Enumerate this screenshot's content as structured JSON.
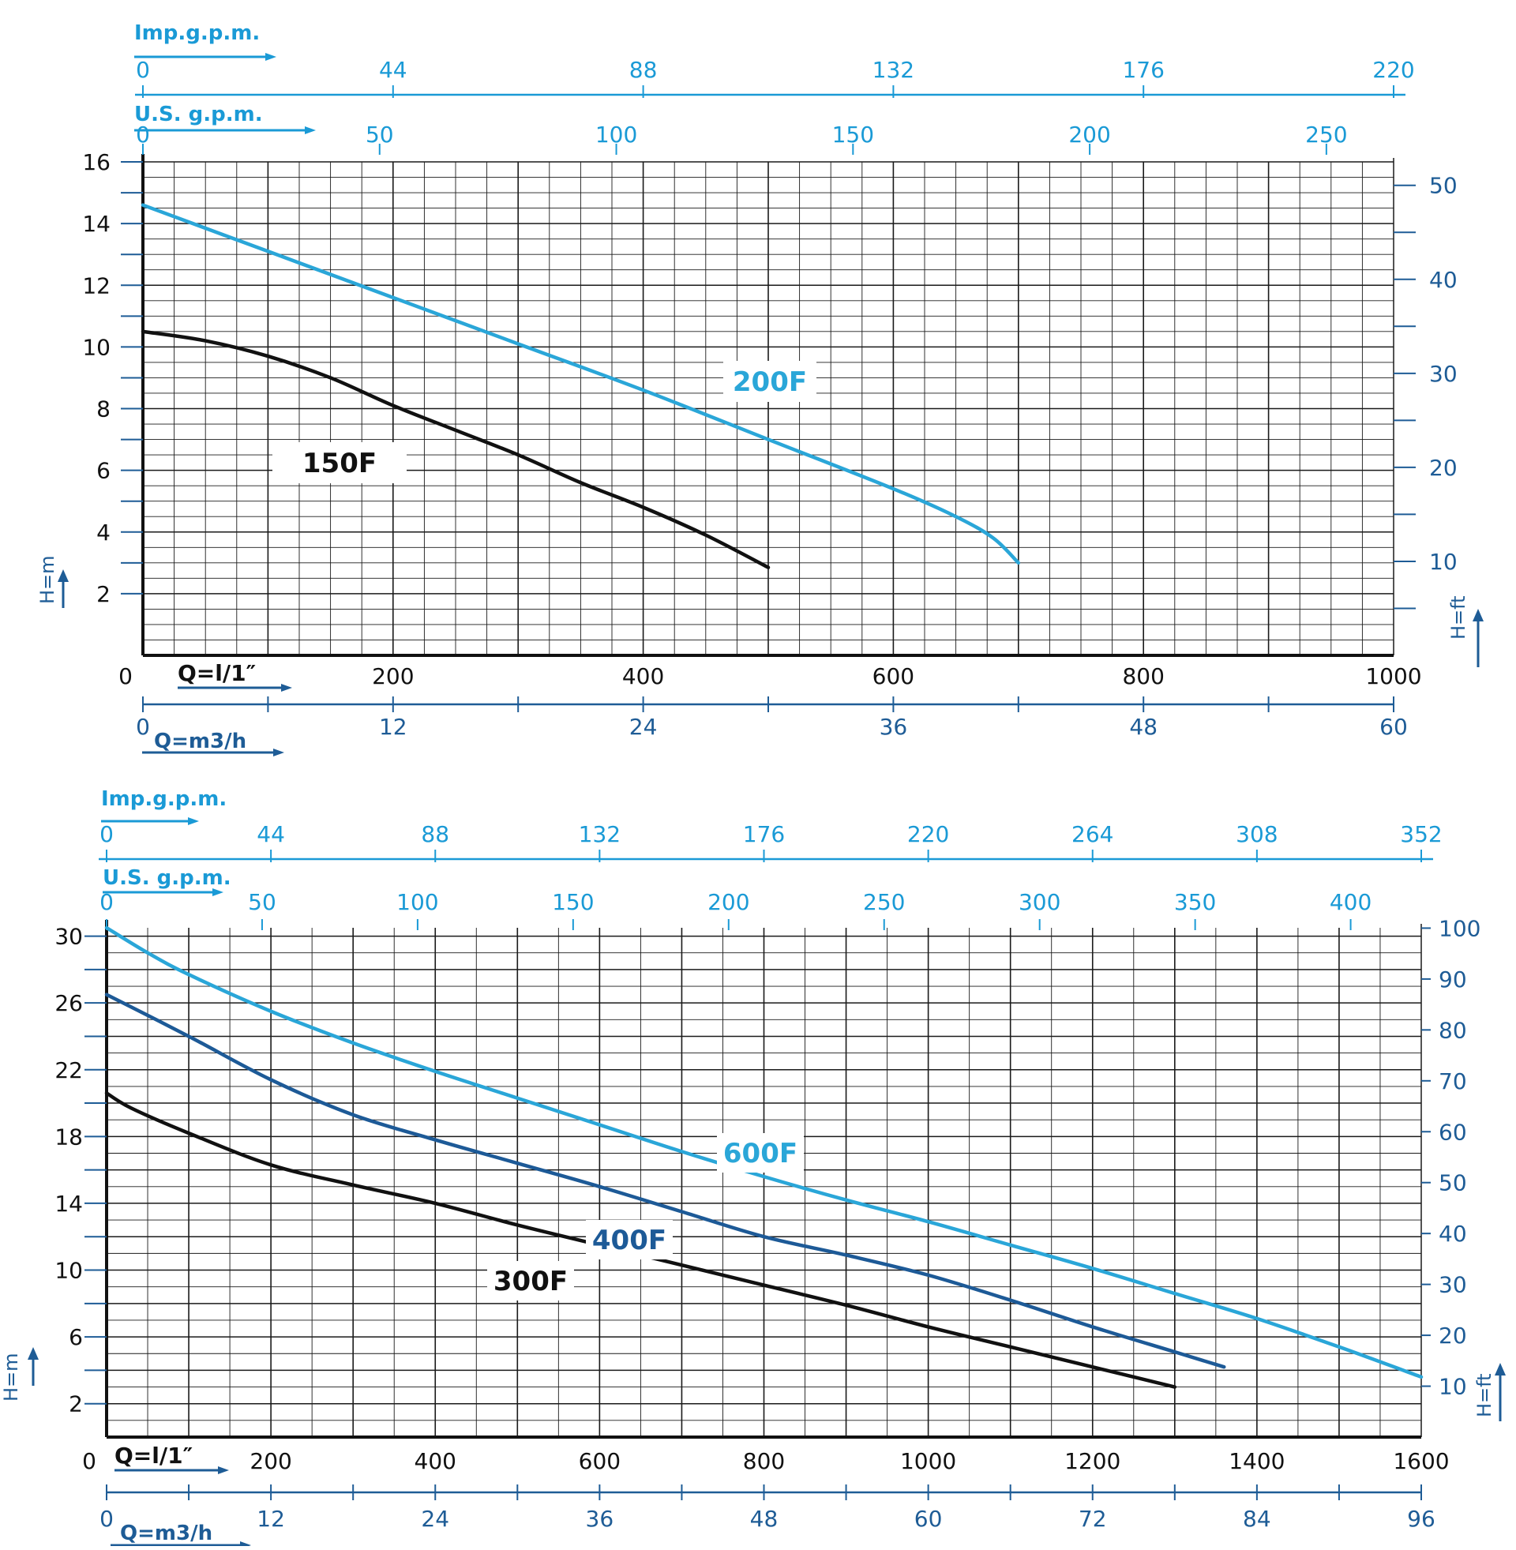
{
  "colors": {
    "axis_blue": "#1a9ad6",
    "axis_navy": "#1e5c96",
    "grid": "#1a1a1a",
    "black": "#111111",
    "light_blue": "#2aa6d8",
    "dark_blue": "#1d5a97"
  },
  "chart_data": [
    {
      "type": "line",
      "title": "",
      "xlabel": "Q=l/1″",
      "ylabel": "H=m",
      "xlim": [
        0,
        1000
      ],
      "ylim": [
        0,
        16
      ],
      "x_ticks": [
        "0",
        "200",
        "400",
        "600",
        "800",
        "1000"
      ],
      "y_ticks": [
        "2",
        "4",
        "6",
        "8",
        "10",
        "12",
        "14",
        "16"
      ],
      "grid": true,
      "top_axis_imp": {
        "label": "Imp.g.p.m.",
        "ticks": [
          "0",
          "44",
          "88",
          "132",
          "176",
          "220"
        ]
      },
      "top_axis_us": {
        "label": "U.S. g.p.m.",
        "ticks": [
          "0",
          "50",
          "100",
          "150",
          "200",
          "250"
        ]
      },
      "bottom_axis_m3h": {
        "label": "Q=m3/h",
        "ticks": [
          "0",
          "12",
          "24",
          "36",
          "48",
          "60"
        ]
      },
      "right_axis_ft": {
        "label": "H=ft",
        "ticks": [
          "10",
          "20",
          "30",
          "40",
          "50"
        ]
      },
      "series": [
        {
          "name": "150F",
          "color": "#111111",
          "x": [
            0,
            50,
            100,
            150,
            200,
            250,
            300,
            350,
            400,
            450,
            500
          ],
          "y": [
            10.5,
            10.2,
            9.7,
            9.0,
            8.1,
            7.3,
            6.5,
            5.6,
            4.8,
            3.9,
            2.85
          ]
        },
        {
          "name": "200F",
          "color": "#2aa6d8",
          "x": [
            0,
            100,
            200,
            300,
            400,
            500,
            600,
            650,
            680,
            700
          ],
          "y": [
            14.6,
            13.1,
            11.6,
            10.1,
            8.6,
            7.0,
            5.4,
            4.5,
            3.8,
            3.0
          ]
        }
      ]
    },
    {
      "type": "line",
      "title": "",
      "xlabel": "Q=l/1″",
      "ylabel": "H=m",
      "xlim": [
        0,
        1600
      ],
      "ylim": [
        0,
        30.5
      ],
      "x_ticks": [
        "0",
        "200",
        "400",
        "600",
        "800",
        "1000",
        "1200",
        "1400",
        "1600"
      ],
      "y_ticks": [
        "2",
        "6",
        "10",
        "14",
        "18",
        "22",
        "26",
        "30"
      ],
      "grid": true,
      "top_axis_imp": {
        "label": "Imp.g.p.m.",
        "ticks": [
          "0",
          "44",
          "88",
          "132",
          "176",
          "220",
          "264",
          "308",
          "352"
        ]
      },
      "top_axis_us": {
        "label": "U.S. g.p.m.",
        "ticks": [
          "0",
          "50",
          "100",
          "150",
          "200",
          "250",
          "300",
          "350",
          "400"
        ]
      },
      "bottom_axis_m3h": {
        "label": "Q=m3/h",
        "ticks": [
          "0",
          "12",
          "24",
          "36",
          "48",
          "60",
          "72",
          "84",
          "96"
        ]
      },
      "right_axis_ft": {
        "label": "H=ft",
        "ticks": [
          "10",
          "20",
          "30",
          "40",
          "50",
          "60",
          "70",
          "80",
          "90",
          "100"
        ]
      },
      "series": [
        {
          "name": "300F",
          "color": "#111111",
          "x": [
            0,
            30,
            100,
            200,
            300,
            400,
            500,
            600,
            700,
            800,
            900,
            1000,
            1100,
            1200,
            1300
          ],
          "y": [
            20.6,
            19.7,
            18.2,
            16.3,
            15.1,
            14.0,
            12.7,
            11.5,
            10.3,
            9.1,
            7.9,
            6.6,
            5.4,
            4.2,
            3.0
          ]
        },
        {
          "name": "400F",
          "color": "#1d5a97",
          "x": [
            0,
            100,
            200,
            300,
            400,
            500,
            600,
            700,
            800,
            900,
            1000,
            1100,
            1200,
            1300,
            1360
          ],
          "y": [
            26.5,
            24.0,
            21.4,
            19.3,
            17.8,
            16.4,
            15.0,
            13.5,
            12.0,
            10.9,
            9.7,
            8.2,
            6.6,
            5.1,
            4.2
          ]
        },
        {
          "name": "600F",
          "color": "#2aa6d8",
          "x": [
            0,
            50,
            100,
            200,
            300,
            400,
            500,
            600,
            700,
            800,
            900,
            1000,
            1100,
            1200,
            1300,
            1400,
            1500,
            1600
          ],
          "y": [
            30.5,
            29.0,
            27.7,
            25.5,
            23.6,
            21.9,
            20.3,
            18.7,
            17.1,
            15.6,
            14.2,
            12.9,
            11.5,
            10.1,
            8.6,
            7.1,
            5.4,
            3.6
          ]
        }
      ]
    }
  ]
}
